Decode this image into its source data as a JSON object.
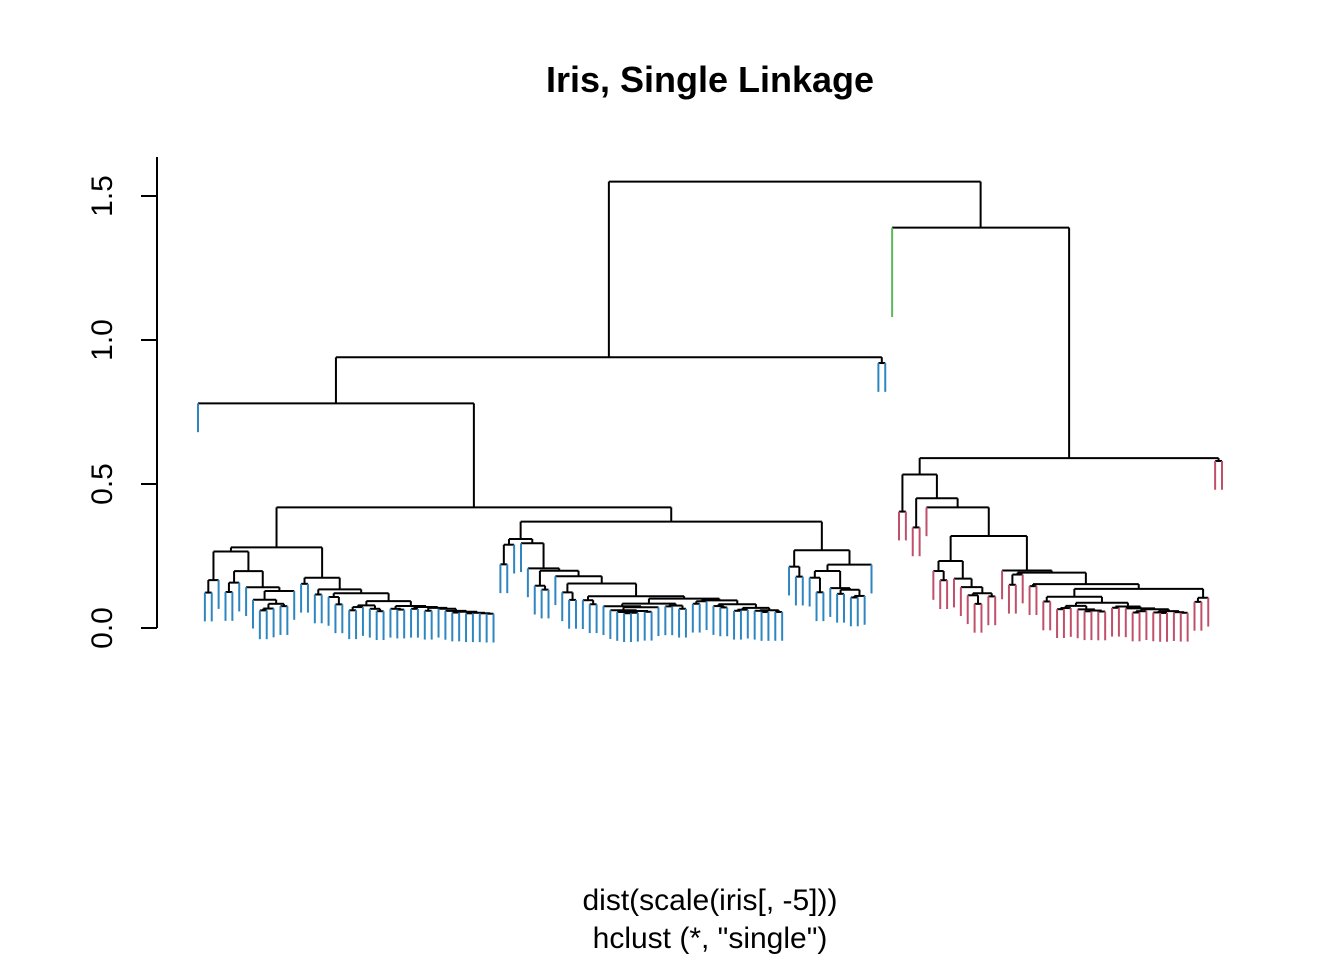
{
  "chart_data": {
    "type": "dendrogram",
    "title": "Iris, Single Linkage",
    "xlabel": "dist(scale(iris[, -5]))",
    "sublabel": "hclust (*, \"single\")",
    "ylabel": "",
    "ylim": [
      0,
      1.6
    ],
    "yticks": [
      0.0,
      0.5,
      1.0,
      1.5
    ],
    "ytick_labels": [
      "0.0",
      "0.5",
      "1.0",
      "1.5"
    ],
    "n_leaves": 150,
    "root_height": 1.55,
    "colors": {
      "cluster_1": "#2E86C1",
      "cluster_2": "#5CB85C",
      "cluster_3": "#C0506A",
      "links": "#000000"
    },
    "clusters": [
      {
        "id": "cluster_1",
        "color": "#2E86C1",
        "n_leaves": 101
      },
      {
        "id": "cluster_2",
        "color": "#5CB85C",
        "n_leaves": 1
      },
      {
        "id": "cluster_3",
        "color": "#C0506A",
        "n_leaves": 48
      }
    ],
    "top_merges": [
      {
        "name": "root",
        "height": 1.55,
        "joins": [
          "cluster_1_group",
          "cluster_2_3_group"
        ]
      },
      {
        "name": "cluster_2_3_group",
        "height": 1.39,
        "joins": [
          "cluster_2",
          "cluster_3"
        ]
      },
      {
        "name": "cluster_1_group",
        "height": 0.94,
        "joins": [
          "main_blue",
          "blue_pair"
        ]
      },
      {
        "name": "cluster_3",
        "height": 0.59,
        "joins": [
          "main_red",
          "red_outliers"
        ]
      },
      {
        "name": "main_blue",
        "height": 0.78,
        "joins": [
          "leaf",
          "rest"
        ]
      }
    ]
  }
}
